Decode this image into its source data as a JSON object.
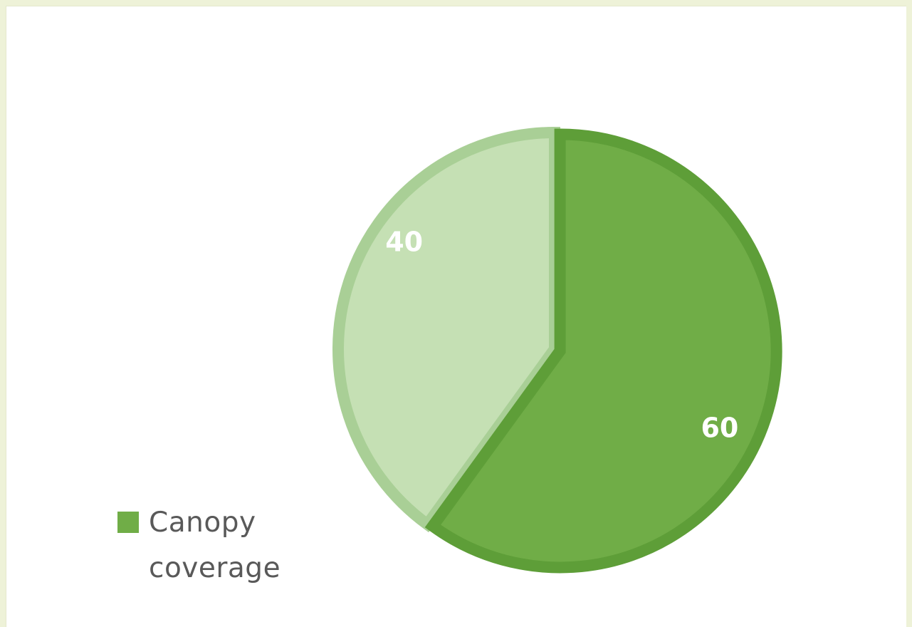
{
  "chart_data": {
    "type": "pie",
    "categories": [
      "",
      "Canopy coverage"
    ],
    "values": [
      40,
      60
    ],
    "colors": [
      "#c5e0b4",
      "#70ad47"
    ],
    "edge_colors": [
      "#a9cf96",
      "#5e9e38"
    ],
    "start_angle_deg": 0,
    "direction": "clockwise",
    "legend": {
      "entries": [
        "Canopy coverage"
      ],
      "placement": "bottom-left"
    }
  }
}
